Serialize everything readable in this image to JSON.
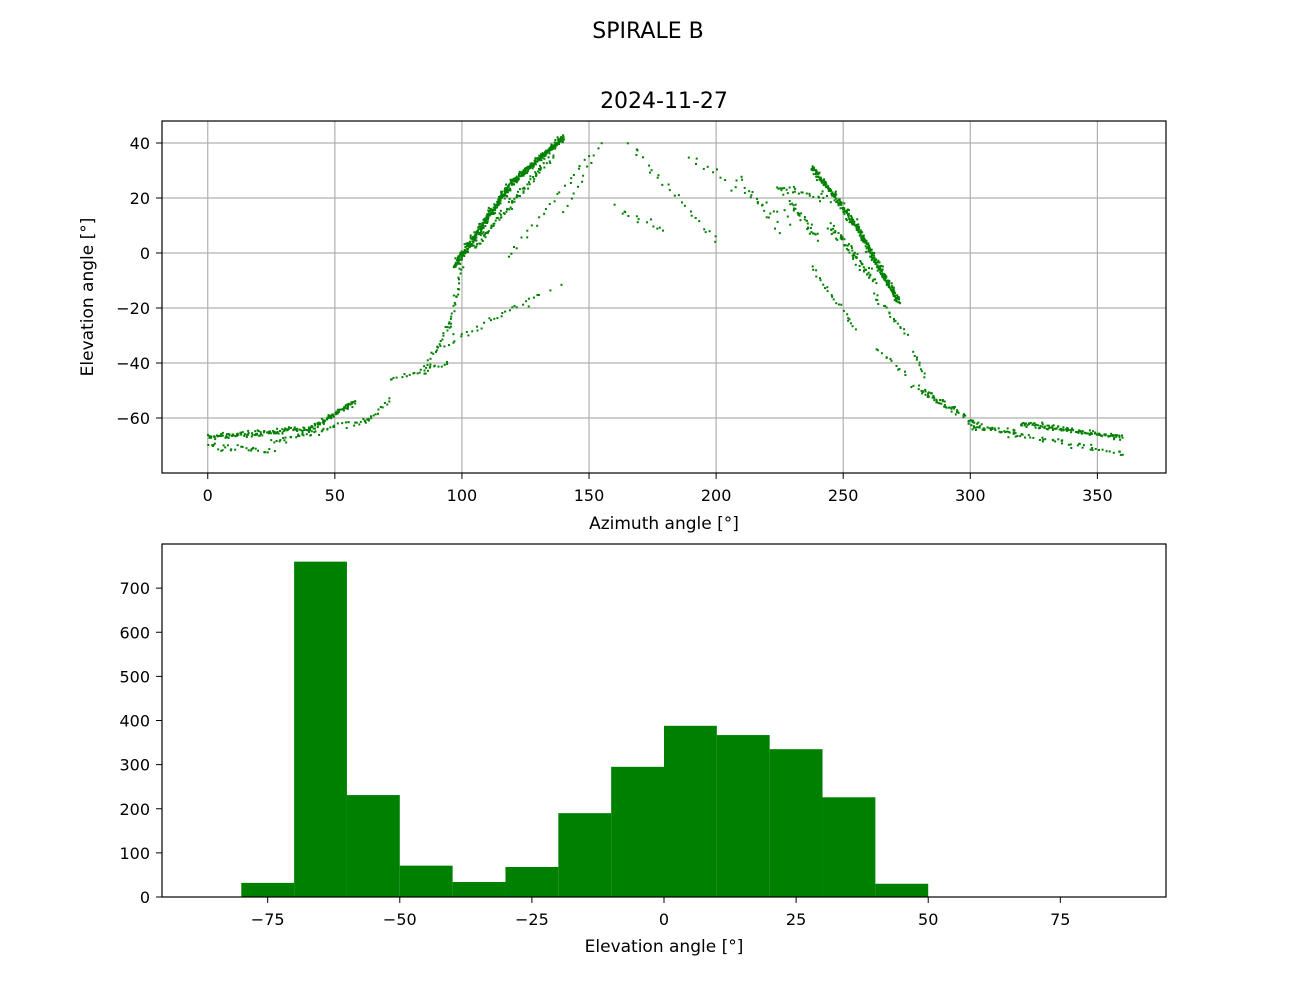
{
  "figure": {
    "suptitle": "SPIRALE B",
    "mark_color": "#008000",
    "grid_color": "#b0b0b0"
  },
  "chart_data": [
    {
      "type": "scatter",
      "title": "2024-11-27",
      "xlabel": "Azimuth angle [°]",
      "ylabel": "Elevation angle [°]",
      "xlim": [
        -18,
        377
      ],
      "ylim": [
        -80,
        48
      ],
      "xticks": [
        0,
        50,
        100,
        150,
        200,
        250,
        300,
        350
      ],
      "yticks": [
        -60,
        -40,
        -20,
        0,
        20,
        40
      ],
      "xtick_labels": [
        "0",
        "50",
        "100",
        "150",
        "200",
        "250",
        "300",
        "350"
      ],
      "ytick_labels": [
        "−60",
        "−40",
        "−20",
        "0",
        "20",
        "40"
      ],
      "grid": true,
      "color": "#008000",
      "segments": [
        {
          "from": [
            0,
            -67
          ],
          "to": [
            40,
            -64
          ],
          "n": 120,
          "jitter": [
            1.5,
            1.5
          ]
        },
        {
          "from": [
            40,
            -64
          ],
          "to": [
            58,
            -54
          ],
          "n": 80,
          "jitter": [
            1.5,
            1.2
          ]
        },
        {
          "from": [
            0,
            -70
          ],
          "to": [
            25,
            -72
          ],
          "n": 30,
          "jitter": [
            3,
            2
          ]
        },
        {
          "from": [
            25,
            -69
          ],
          "to": [
            65,
            -60
          ],
          "n": 50,
          "jitter": [
            2,
            2
          ]
        },
        {
          "from": [
            62,
            -62
          ],
          "to": [
            72,
            -53
          ],
          "n": 14,
          "jitter": [
            1,
            1
          ]
        },
        {
          "from": [
            72,
            -46
          ],
          "to": [
            95,
            -40
          ],
          "n": 24,
          "jitter": [
            1.5,
            1
          ]
        },
        {
          "from": [
            85,
            -44
          ],
          "to": [
            95,
            -26
          ],
          "n": 24,
          "jitter": [
            1.5,
            1.5
          ]
        },
        {
          "from": [
            95,
            -28
          ],
          "to": [
            100,
            -5
          ],
          "n": 24,
          "jitter": [
            1,
            1.5
          ]
        },
        {
          "from": [
            97,
            -5
          ],
          "to": [
            120,
            26
          ],
          "n": 300,
          "jitter": [
            1.5,
            2.5
          ]
        },
        {
          "from": [
            120,
            26
          ],
          "to": [
            140,
            42
          ],
          "n": 200,
          "jitter": [
            1.5,
            1.5
          ]
        },
        {
          "from": [
            105,
            2
          ],
          "to": [
            135,
            35
          ],
          "n": 90,
          "jitter": [
            2,
            2
          ]
        },
        {
          "from": [
            118,
            -2
          ],
          "to": [
            150,
            35
          ],
          "n": 24,
          "jitter": [
            1.5,
            1.5
          ]
        },
        {
          "from": [
            140,
            15
          ],
          "to": [
            155,
            40
          ],
          "n": 12,
          "jitter": [
            1,
            1
          ]
        },
        {
          "from": [
            93,
            -34
          ],
          "to": [
            130,
            -15
          ],
          "n": 24,
          "jitter": [
            1.5,
            1.5
          ]
        },
        {
          "from": [
            97,
            -30
          ],
          "to": [
            140,
            -13
          ],
          "n": 10,
          "jitter": [
            2,
            2
          ]
        },
        {
          "from": [
            160,
            16
          ],
          "to": [
            180,
            8
          ],
          "n": 14,
          "jitter": [
            3,
            3
          ]
        },
        {
          "from": [
            166,
            40
          ],
          "to": [
            200,
            4
          ],
          "n": 26,
          "jitter": [
            2,
            2
          ]
        },
        {
          "from": [
            190,
            34
          ],
          "to": [
            230,
            12
          ],
          "n": 24,
          "jitter": [
            3,
            3
          ]
        },
        {
          "from": [
            210,
            28
          ],
          "to": [
            225,
            8
          ],
          "n": 14,
          "jitter": [
            2,
            2
          ]
        },
        {
          "from": [
            225,
            25
          ],
          "to": [
            238,
            6
          ],
          "n": 20,
          "jitter": [
            2,
            2
          ]
        },
        {
          "from": [
            225,
            25
          ],
          "to": [
            245,
            20
          ],
          "n": 24,
          "jitter": [
            3,
            3
          ]
        },
        {
          "from": [
            230,
            18
          ],
          "to": [
            240,
            5
          ],
          "n": 16,
          "jitter": [
            2,
            2
          ]
        },
        {
          "from": [
            238,
            31
          ],
          "to": [
            255,
            10
          ],
          "n": 160,
          "jitter": [
            1.5,
            2
          ]
        },
        {
          "from": [
            255,
            10
          ],
          "to": [
            272,
            -18
          ],
          "n": 200,
          "jitter": [
            1.5,
            2
          ]
        },
        {
          "from": [
            245,
            10
          ],
          "to": [
            262,
            -10
          ],
          "n": 70,
          "jitter": [
            2,
            2.5
          ]
        },
        {
          "from": [
            238,
            -5
          ],
          "to": [
            255,
            -28
          ],
          "n": 24,
          "jitter": [
            2,
            2
          ]
        },
        {
          "from": [
            262,
            -15
          ],
          "to": [
            275,
            -30
          ],
          "n": 20,
          "jitter": [
            1.5,
            1.5
          ]
        },
        {
          "from": [
            263,
            -35
          ],
          "to": [
            275,
            -44
          ],
          "n": 12,
          "jitter": [
            2,
            1.5
          ]
        },
        {
          "from": [
            278,
            -36
          ],
          "to": [
            282,
            -45
          ],
          "n": 10,
          "jitter": [
            1,
            1
          ]
        },
        {
          "from": [
            278,
            -48
          ],
          "to": [
            295,
            -58
          ],
          "n": 30,
          "jitter": [
            2,
            2
          ]
        },
        {
          "from": [
            282,
            -50
          ],
          "to": [
            305,
            -64
          ],
          "n": 40,
          "jitter": [
            2,
            2
          ]
        },
        {
          "from": [
            300,
            -63
          ],
          "to": [
            320,
            -66
          ],
          "n": 40,
          "jitter": [
            3,
            2
          ]
        },
        {
          "from": [
            320,
            -62
          ],
          "to": [
            360,
            -67
          ],
          "n": 120,
          "jitter": [
            1.5,
            1.5
          ]
        },
        {
          "from": [
            320,
            -66
          ],
          "to": [
            360,
            -73
          ],
          "n": 40,
          "jitter": [
            3,
            2
          ]
        }
      ]
    },
    {
      "type": "bar",
      "xlabel": "Elevation angle [°]",
      "xlim": [
        -95,
        95
      ],
      "ylim": [
        0,
        800
      ],
      "xticks": [
        -75,
        -50,
        -25,
        0,
        25,
        50,
        75
      ],
      "yticks": [
        0,
        100,
        200,
        300,
        400,
        500,
        600,
        700
      ],
      "xtick_labels": [
        "−75",
        "−50",
        "−25",
        "0",
        "25",
        "50",
        "75"
      ],
      "ytick_labels": [
        "0",
        "100",
        "200",
        "300",
        "400",
        "500",
        "600",
        "700"
      ],
      "color": "#008000",
      "bin_edges": [
        -80,
        -70,
        -60,
        -50,
        -40,
        -30,
        -20,
        -10,
        0,
        10,
        20,
        30,
        40,
        50
      ],
      "values": [
        32,
        760,
        231,
        71,
        34,
        68,
        190,
        295,
        388,
        367,
        335,
        226,
        30
      ]
    }
  ]
}
